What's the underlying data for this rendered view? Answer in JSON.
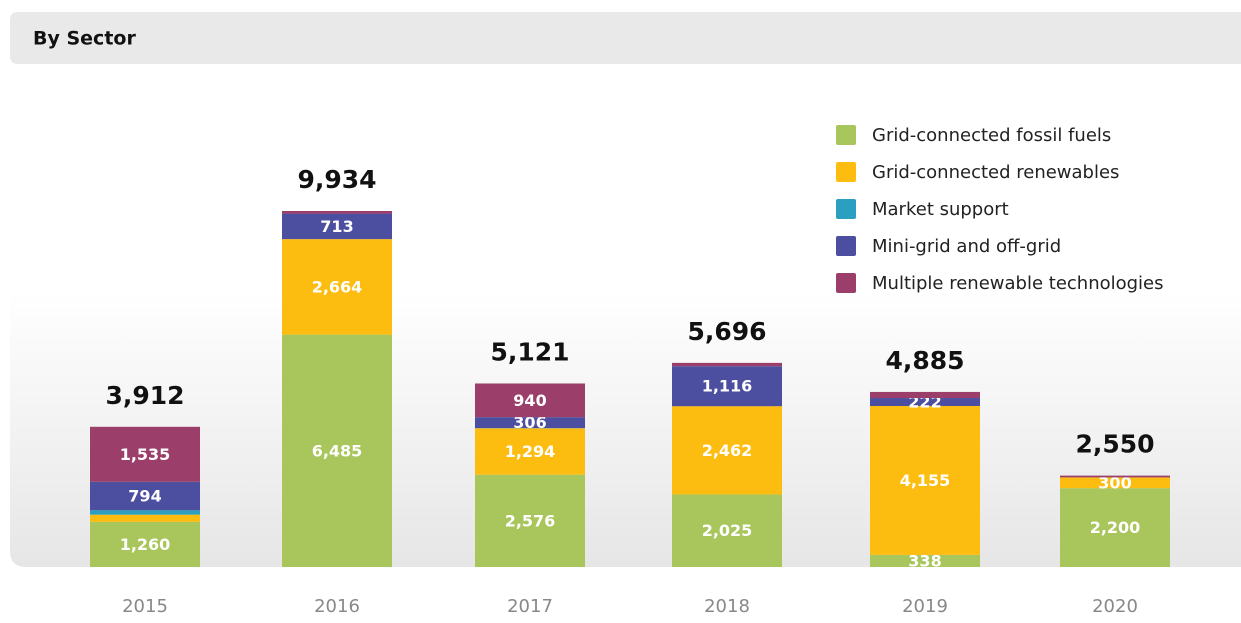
{
  "header": {
    "title": "By Sector"
  },
  "chart_data": {
    "type": "stacked_bar",
    "categories": [
      "2015",
      "2016",
      "2017",
      "2018",
      "2019",
      "2020"
    ],
    "totals": [
      3912,
      9934,
      5121,
      5696,
      4885,
      2550
    ],
    "total_labels": [
      "3,912",
      "9,934",
      "5,121",
      "5,696",
      "4,885",
      "2,550"
    ],
    "series": [
      {
        "name": "Grid-connected fossil fuels",
        "color": "#a9c65c",
        "values": [
          1260,
          6485,
          2576,
          2025,
          338,
          2200
        ],
        "value_labels": [
          "1,260",
          "6,485",
          "2,576",
          "2,025",
          "338",
          "2,200"
        ]
      },
      {
        "name": "Grid-connected renewables",
        "color": "#fdbd10",
        "values": [
          200,
          2664,
          1294,
          2462,
          4155,
          300
        ],
        "value_labels": [
          null,
          "2,664",
          "1,294",
          "2,462",
          "4,155",
          "300"
        ]
      },
      {
        "name": "Market support",
        "color": "#2a9fbf",
        "values": [
          123,
          0,
          5,
          0,
          0,
          0
        ]
      },
      {
        "name": "Mini-grid and off-grid",
        "color": "#4c4ea0",
        "values": [
          794,
          713,
          306,
          1116,
          222,
          0
        ],
        "value_labels": [
          "794",
          "713",
          "306",
          "1,116",
          "222",
          null
        ]
      },
      {
        "name": "Multiple renewable technologies",
        "color": "#9b3f6a",
        "values": [
          1535,
          72,
          940,
          93,
          170,
          50
        ],
        "value_labels": [
          "1,535",
          null,
          "940",
          null,
          null,
          null
        ]
      }
    ]
  }
}
